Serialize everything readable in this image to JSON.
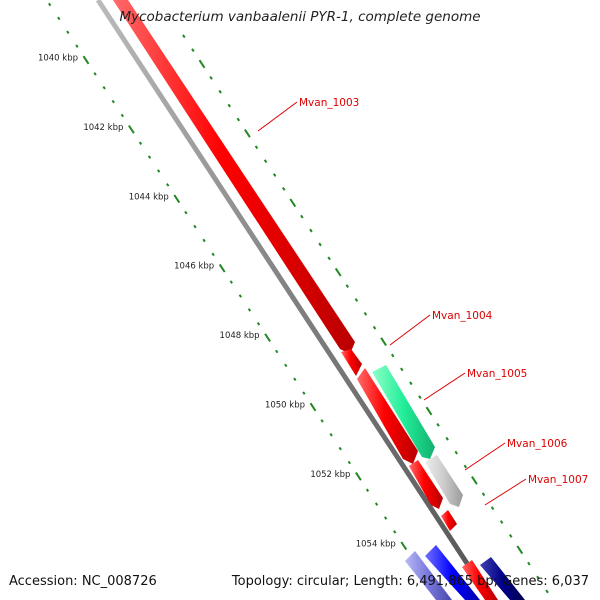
{
  "title": "Mycobacterium vanbaalenii PYR-1, complete genome",
  "footer": {
    "accession": "Accession: NC_008726",
    "summary": "Topology: circular; Length: 6,491,865 bp; Genes: 6,037"
  },
  "ticks": [
    {
      "label": "1040 kbp",
      "kbp": 1040
    },
    {
      "label": "1042 kbp",
      "kbp": 1042
    },
    {
      "label": "1044 kbp",
      "kbp": 1044
    },
    {
      "label": "1046 kbp",
      "kbp": 1046
    },
    {
      "label": "1048 kbp",
      "kbp": 1048
    },
    {
      "label": "1050 kbp",
      "kbp": 1050
    },
    {
      "label": "1052 kbp",
      "kbp": 1052
    },
    {
      "label": "1054 kbp",
      "kbp": 1054
    }
  ],
  "gene_labels": [
    "Mvan_1003",
    "Mvan_1004",
    "Mvan_1005",
    "Mvan_1006",
    "Mvan_1007"
  ],
  "colors": {
    "cds_forward": "#ff0000",
    "rrna": "#33ee99",
    "pseudo": "#c8c8c8",
    "reverse_blue": "#0000ff",
    "reverse_lavender": "#7777dd",
    "reverse_navy": "#000088",
    "backbone": "#888888",
    "tick": "#228822",
    "label_red": "#dd0000"
  }
}
